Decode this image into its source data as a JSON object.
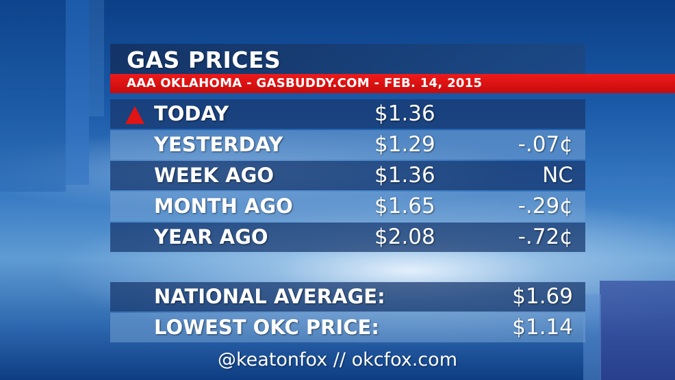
{
  "header": {
    "title": "GAS PRICES",
    "subtitle": "AAA OKLAHOMA - GASBUDDY.COM - FEB. 14, 2015"
  },
  "prices": [
    {
      "label": "TODAY",
      "price": "$1.36",
      "change": "",
      "indicator": "up-arrow-icon"
    },
    {
      "label": "YESTERDAY",
      "price": "$1.29",
      "change": "-.07¢"
    },
    {
      "label": "WEEK AGO",
      "price": "$1.36",
      "change": "NC"
    },
    {
      "label": "MONTH AGO",
      "price": "$1.65",
      "change": "-.29¢"
    },
    {
      "label": "YEAR AGO",
      "price": "$2.08",
      "change": "-.72¢"
    }
  ],
  "summary": [
    {
      "label": "NATIONAL AVERAGE:",
      "value": "$1.69"
    },
    {
      "label": "LOWEST OKC PRICE:",
      "value": "$1.14"
    }
  ],
  "footer": {
    "text": "@keatonfox  //  okcfox.com"
  },
  "colors": {
    "accent_red": "#e01414",
    "row_dark": "#17376e",
    "row_light": "#73a0d2",
    "text": "#ffffff"
  }
}
